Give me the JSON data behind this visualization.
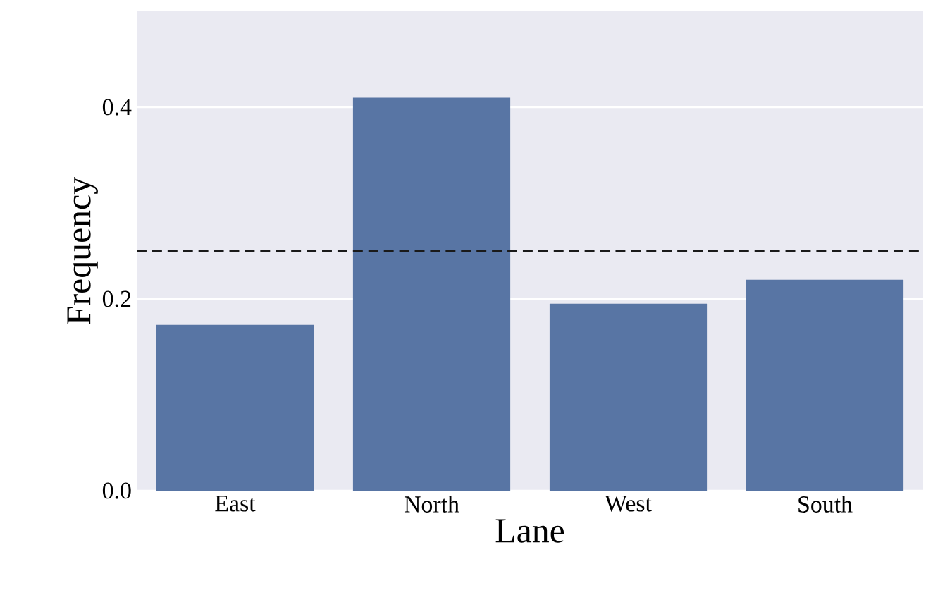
{
  "chart_data": {
    "type": "bar",
    "xlabel": "Lane",
    "ylabel": "Frequency",
    "categories": [
      "East",
      "North",
      "West",
      "South"
    ],
    "values": [
      0.173,
      0.41,
      0.195,
      0.22
    ],
    "color": "#5875a4",
    "ylim": [
      0,
      0.5
    ],
    "yticks": [
      {
        "value": 0,
        "label": "0.0"
      },
      0.2,
      0.4
    ],
    "grid": "y",
    "ref_lines": [
      {
        "axis": "y",
        "value": 0.25,
        "color": "#1a1a1a",
        "line_style": "dashed"
      }
    ]
  }
}
